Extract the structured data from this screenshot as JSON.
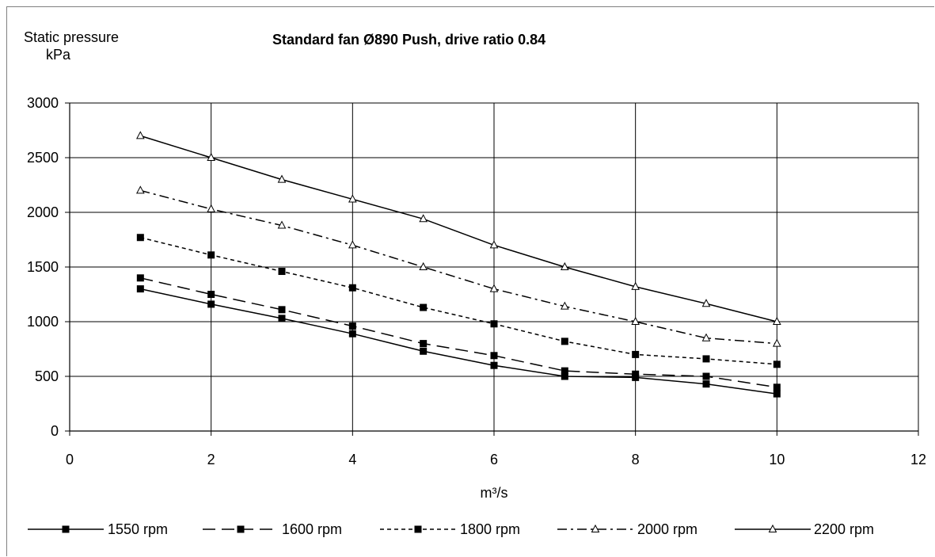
{
  "chart_data": {
    "type": "line",
    "title": "Standard fan Ø890 Push, drive ratio 0.84",
    "ylabel": [
      "Static pressure",
      "kPa"
    ],
    "xlabel": "m³/s",
    "xlim": [
      0,
      12
    ],
    "ylim": [
      0,
      3000
    ],
    "x_ticks": [
      0,
      2,
      4,
      6,
      8,
      10,
      12
    ],
    "y_ticks": [
      0,
      500,
      1000,
      1500,
      2000,
      2500,
      3000
    ],
    "grid": true,
    "legend_position": "bottom",
    "x": [
      1,
      2,
      3,
      4,
      5,
      6,
      7,
      8,
      9,
      10
    ],
    "series": [
      {
        "name": "1550 rpm",
        "marker": "square",
        "dash": "solid",
        "values": [
          1300,
          1160,
          1030,
          890,
          730,
          600,
          500,
          490,
          430,
          340
        ]
      },
      {
        "name": "1600 rpm",
        "marker": "square",
        "dash": "long-dash",
        "values": [
          1400,
          1250,
          1110,
          960,
          800,
          690,
          550,
          520,
          500,
          400
        ]
      },
      {
        "name": "1800 rpm",
        "marker": "square",
        "dash": "short-dash",
        "values": [
          1770,
          1610,
          1460,
          1310,
          1130,
          980,
          820,
          700,
          660,
          610
        ]
      },
      {
        "name": "2000 rpm",
        "marker": "triangle",
        "dash": "dash-dot",
        "values": [
          2200,
          2030,
          1880,
          1700,
          1500,
          1300,
          1140,
          1000,
          850,
          800
        ]
      },
      {
        "name": "2200 rpm",
        "marker": "triangle",
        "dash": "solid",
        "values": [
          2700,
          2500,
          2300,
          2120,
          1940,
          1700,
          1500,
          1320,
          1165,
          1000
        ]
      }
    ]
  }
}
